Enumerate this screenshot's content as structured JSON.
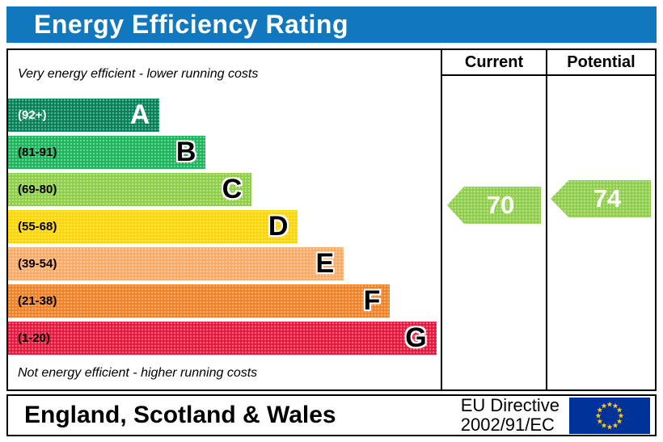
{
  "title": "Energy Efficiency Rating",
  "columns": {
    "current": "Current",
    "potential": "Potential"
  },
  "notes": {
    "top": "Very energy efficient - lower running costs",
    "bottom": "Not energy efficient - higher running costs"
  },
  "bands": [
    {
      "label": "A",
      "range": "(92+)",
      "color": "#008054",
      "width_pct": 35,
      "range_color": "#ffffff",
      "letter_color": "#ffffff",
      "letter_outline": null
    },
    {
      "label": "B",
      "range": "(81-91)",
      "color": "#19b459",
      "width_pct": 45.7,
      "range_color": "#000000",
      "letter_color": "#000000",
      "letter_outline": "#ffffff"
    },
    {
      "label": "C",
      "range": "(69-80)",
      "color": "#8dce46",
      "width_pct": 56.3,
      "range_color": "#000000",
      "letter_color": "#000000",
      "letter_outline": "#ffffff"
    },
    {
      "label": "D",
      "range": "(55-68)",
      "color": "#ffd500",
      "width_pct": 67,
      "range_color": "#000000",
      "letter_color": "#000000",
      "letter_outline": "#ffffff"
    },
    {
      "label": "E",
      "range": "(39-54)",
      "color": "#fcaa65",
      "width_pct": 77.6,
      "range_color": "#000000",
      "letter_color": "#000000",
      "letter_outline": "#ffffff"
    },
    {
      "label": "F",
      "range": "(21-38)",
      "color": "#ef8023",
      "width_pct": 88.3,
      "range_color": "#000000",
      "letter_color": "#000000",
      "letter_outline": "#ffffff"
    },
    {
      "label": "G",
      "range": "(1-20)",
      "color": "#e9153b",
      "width_pct": 99,
      "range_color": "#000000",
      "letter_color": "#000000",
      "letter_outline": "#ffffff"
    }
  ],
  "ratings": {
    "current": {
      "value": "70",
      "color": "#8dce46"
    },
    "potential": {
      "value": "74",
      "color": "#8dce46"
    }
  },
  "footer": {
    "region": "England, Scotland & Wales",
    "directive_line1": "EU Directive",
    "directive_line2": "2002/91/EC"
  },
  "colors": {
    "title_bg": "#1278be",
    "title_text": "#ffffff",
    "border": "#000000",
    "flag_bg": "#003399",
    "flag_stars": "#ffcc00"
  },
  "chart_data": {
    "type": "bar",
    "title": "Energy Efficiency Rating",
    "categories": [
      "A",
      "B",
      "C",
      "D",
      "E",
      "F",
      "G"
    ],
    "band_ranges": [
      "92+",
      "81-91",
      "69-80",
      "55-68",
      "39-54",
      "21-38",
      "1-20"
    ],
    "band_colors": [
      "#008054",
      "#19b459",
      "#8dce46",
      "#ffd500",
      "#fcaa65",
      "#ef8023",
      "#e9153b"
    ],
    "series": [
      {
        "name": "Current",
        "value": 70
      },
      {
        "name": "Potential",
        "value": 74
      }
    ],
    "scale": [
      1,
      100
    ],
    "annotations": [
      "Very energy efficient - lower running costs",
      "Not energy efficient - higher running costs",
      "England, Scotland & Wales",
      "EU Directive 2002/91/EC"
    ]
  }
}
